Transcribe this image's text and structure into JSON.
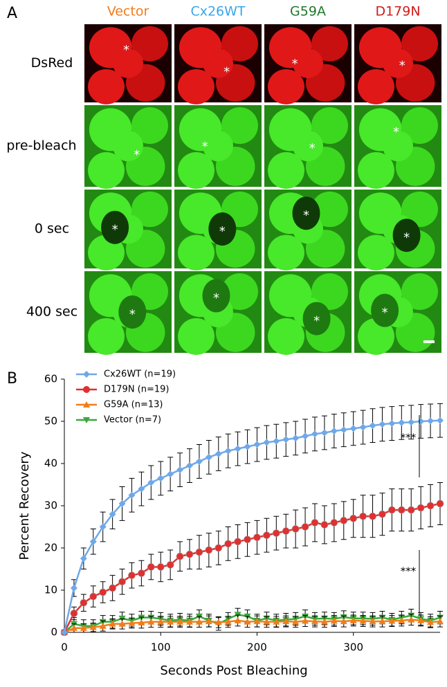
{
  "panel_a": {
    "label": "A",
    "columns": [
      {
        "label": "Vector",
        "color": "#f07d1a"
      },
      {
        "label": "Cx26WT",
        "color": "#3aa6e8"
      },
      {
        "label": "G59A",
        "color": "#1f7a2a"
      },
      {
        "label": "D179N",
        "color": "#d01c1c"
      }
    ],
    "rows": [
      "DsRed",
      "pre-bleach",
      "0 sec",
      "400 sec"
    ],
    "marker": "*"
  },
  "chart_data": {
    "type": "line",
    "panel": "B",
    "x_label": "Seconds Post Bleaching",
    "y_label": "Percent Recovery",
    "x": [
      0,
      10,
      20,
      30,
      40,
      50,
      60,
      70,
      80,
      90,
      100,
      110,
      120,
      130,
      140,
      150,
      160,
      170,
      180,
      190,
      200,
      210,
      220,
      230,
      240,
      250,
      260,
      270,
      280,
      290,
      300,
      310,
      320,
      330,
      340,
      350,
      360,
      370,
      380,
      390
    ],
    "xlim": [
      0,
      390
    ],
    "xticks": [
      0,
      100,
      200,
      300
    ],
    "ylim": [
      0,
      60
    ],
    "yticks": [
      0,
      10,
      20,
      30,
      40,
      50,
      60
    ],
    "legend": "top-left",
    "series": [
      {
        "name": "Cx26WT (n=19)",
        "color": "#6fa8e8",
        "marker": "diamond",
        "values": [
          0,
          10.5,
          17.5,
          21.5,
          25,
          28,
          30.5,
          32.5,
          34,
          35.5,
          36.5,
          37.5,
          38.5,
          39.5,
          40.5,
          41.5,
          42.3,
          43,
          43.5,
          44,
          44.5,
          45,
          45.3,
          45.7,
          46,
          46.5,
          47,
          47.3,
          47.7,
          48,
          48.3,
          48.6,
          49,
          49.3,
          49.5,
          49.7,
          49.8,
          50,
          50.1,
          50.2
        ],
        "errors": [
          0,
          2,
          2.5,
          3,
          3.5,
          3.5,
          4,
          4,
          4,
          4,
          4,
          4,
          4,
          4,
          4,
          4,
          4,
          4,
          4,
          4,
          4,
          4,
          4,
          4,
          4,
          4,
          4,
          4,
          4,
          4,
          4,
          4,
          4,
          4,
          4,
          4,
          4,
          4,
          4,
          4
        ]
      },
      {
        "name": "D179N (n=19)",
        "color": "#e03030",
        "marker": "circle",
        "values": [
          0,
          4.5,
          7,
          8.5,
          9.5,
          10.5,
          12,
          13.5,
          14,
          15.5,
          15.5,
          16,
          18,
          18.5,
          19,
          19.5,
          20,
          21,
          21.5,
          22,
          22.5,
          23,
          23.5,
          24,
          24.5,
          25,
          26,
          25.5,
          26,
          26.5,
          27,
          27.5,
          27.5,
          28,
          29,
          29,
          29,
          29.5,
          30,
          30.5
        ],
        "errors": [
          0,
          1.5,
          2,
          2.5,
          2.5,
          3,
          3,
          3,
          3,
          3,
          3.5,
          3.5,
          3.5,
          3.5,
          4,
          4,
          4,
          4,
          4,
          4,
          4,
          4,
          4,
          4,
          4.5,
          4.5,
          4.5,
          4.5,
          4.5,
          4.5,
          4.5,
          5,
          5,
          5,
          5,
          5,
          5,
          5,
          5,
          5
        ]
      },
      {
        "name": "G59A (n=13)",
        "color": "#f07d1a",
        "marker": "triangle",
        "values": [
          0,
          1,
          1,
          1.2,
          1.5,
          2,
          2,
          2.2,
          2.3,
          2.5,
          2.5,
          2.5,
          2.5,
          2.5,
          2.5,
          2.6,
          2.4,
          2.5,
          2.8,
          2.5,
          2.6,
          2.5,
          2.5,
          2.6,
          2.5,
          2.7,
          2.6,
          2.5,
          2.7,
          2.6,
          2.8,
          2.7,
          2.6,
          2.6,
          2.7,
          2.8,
          3,
          2.8,
          2.4,
          2.6
        ],
        "errors": [
          0,
          1,
          1,
          1,
          1.2,
          1.2,
          1.2,
          1.2,
          1.3,
          1.3,
          1.3,
          1.3,
          1.3,
          1.3,
          1.3,
          1.3,
          1.3,
          1.3,
          1.3,
          1.3,
          1.3,
          1.3,
          1.3,
          1.3,
          1.3,
          1.3,
          1.3,
          1.3,
          1.3,
          1.3,
          1.3,
          1.3,
          1.3,
          1.3,
          1.3,
          1.3,
          1.3,
          1.3,
          1.3,
          1.3
        ]
      },
      {
        "name": "Vector (n=7)",
        "color": "#3aa83a",
        "marker": "inverted-triangle",
        "values": [
          0,
          2,
          1.5,
          1.5,
          2.5,
          2.5,
          3.3,
          2.8,
          3.5,
          3.5,
          3.2,
          2.8,
          3,
          2.8,
          3.8,
          2.8,
          2,
          3.2,
          4.2,
          3.8,
          2.8,
          3.3,
          2.8,
          3,
          3.2,
          3.8,
          3.2,
          3.3,
          3.2,
          3.6,
          3.3,
          3.3,
          3.2,
          3.5,
          3,
          3.5,
          4,
          3.2,
          2.8,
          3.5
        ],
        "errors": [
          0,
          1.5,
          1.5,
          1.5,
          1.5,
          1.5,
          1.5,
          1.5,
          1.5,
          1.5,
          1.5,
          1.5,
          1.5,
          1.5,
          1.5,
          1.5,
          1.5,
          1.5,
          1.5,
          1.5,
          1.5,
          1.5,
          1.5,
          1.5,
          1.5,
          1.5,
          1.5,
          1.5,
          1.5,
          1.5,
          1.5,
          1.5,
          1.5,
          1.5,
          1.5,
          1.5,
          1.5,
          1.5,
          1.5,
          1.5
        ]
      }
    ],
    "annotations": [
      "***",
      "***"
    ]
  }
}
